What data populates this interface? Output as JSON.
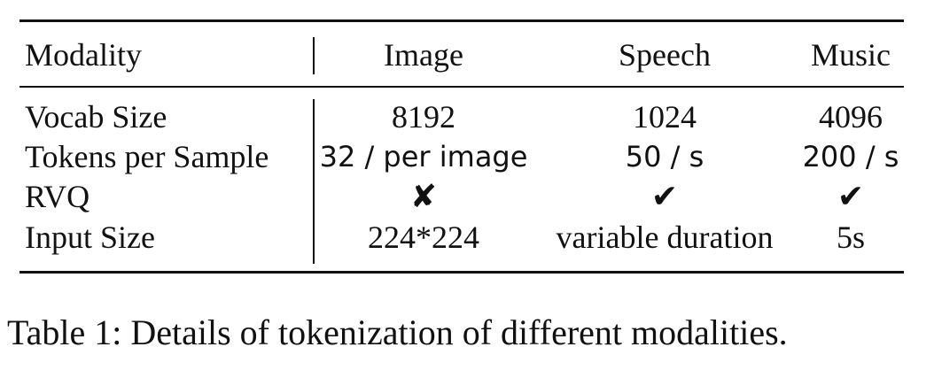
{
  "table": {
    "headers": [
      "Modality",
      "Image",
      "Speech",
      "Music"
    ],
    "rows": [
      [
        "Vocab Size",
        "8192",
        "1024",
        "4096"
      ],
      [
        "Tokens per Sample",
        "32 / per image",
        "50 / s",
        "200 / s"
      ],
      [
        "RVQ",
        "✘",
        "✔",
        "✔"
      ],
      [
        "Input Size",
        "224*224",
        "variable duration",
        "5s"
      ]
    ]
  },
  "caption": "Table 1: Details of tokenization of different modalities."
}
